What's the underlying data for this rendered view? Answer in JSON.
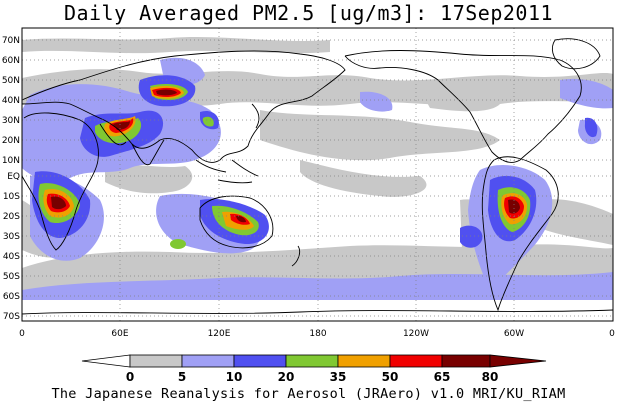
{
  "title": "Daily Averaged PM2.5 [ug/m3]: 17Sep2011",
  "footer": "The Japanese Reanalysis for Aerosol (JRAero) v1.0 MRI/KU_RIAM",
  "lat_labels": [
    "70N",
    "60N",
    "50N",
    "40N",
    "30N",
    "20N",
    "10N",
    "EQ",
    "10S",
    "20S",
    "30S",
    "40S",
    "50S",
    "60S",
    "70S"
  ],
  "lon_labels": [
    "0",
    "60E",
    "120E",
    "180",
    "120W",
    "60W",
    "0"
  ],
  "colorbar": {
    "labels": [
      "0",
      "5",
      "10",
      "20",
      "35",
      "50",
      "65",
      "80"
    ],
    "colors": [
      "#ffffff",
      "#c8c8c8",
      "#a0a0f5",
      "#5050f0",
      "#80c832",
      "#f0a000",
      "#f00000",
      "#780000"
    ]
  },
  "colors": {
    "gray": "#c8c8c8",
    "light_blue": "#a0a0f5",
    "blue": "#5050f0",
    "green": "#80c832",
    "orange": "#f0a000",
    "red": "#f00000",
    "dark_red": "#780000"
  }
}
